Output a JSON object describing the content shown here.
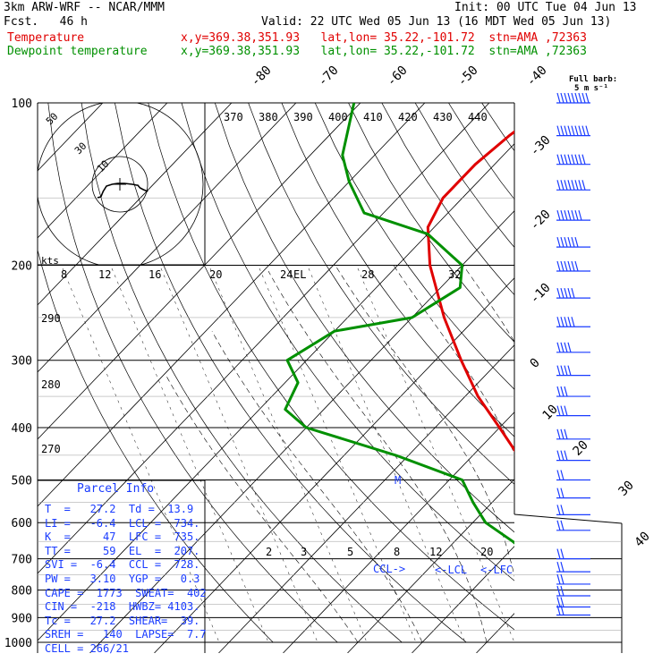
{
  "header": {
    "model": "3km ARW-WRF -- NCAR/MMM",
    "init": "Init: 00 UTC Tue 04 Jun 13",
    "fcst": "Fcst.   46 h",
    "valid": "Valid: 22 UTC Wed 05 Jun 13 (16 MDT Wed 05 Jun 13)",
    "temp_label": "Temperature",
    "dew_label": "Dewpoint temperature",
    "temp_info": "x,y=369.38,351.93   lat,lon= 35.22,-101.72  stn=AMA ,72363",
    "dew_info": "x,y=369.38,351.93   lat,lon= 35.22,-101.72  stn=AMA ,72363"
  },
  "barb_legend": {
    "line1": "Full barb:",
    "line2": "5 m s⁻¹"
  },
  "hodograph": {
    "label": "kts",
    "ring_labels": [
      "10",
      "30",
      "50"
    ]
  },
  "mixing_ratio_upper": [
    "8",
    "12",
    "16",
    "20",
    "24",
    "28",
    "32"
  ],
  "mixing_ratio_lower": [
    "2",
    "3",
    "5",
    "8",
    "12",
    "20"
  ],
  "el_label": "EL",
  "markers": {
    "ccl": "CCL->",
    "lcl": "<-LCL",
    "lfc": "<-LFC",
    "m": "M"
  },
  "parcel_info": {
    "title": "Parcel Info",
    "rows": [
      "T  =   27.2  Td =  13.9",
      "LI =   -6.4  LCL =  734.",
      "K  =     47  LFC =  735.",
      "TT =     59  EL  =  207.",
      "SVI =  -6.4  CCL =  728.",
      "PW =   3.10  YGP =   0.3",
      "CAPE =  1773  SWEAT=  402",
      "CIN =  -218  HWBZ= 4103.",
      "Tc =   27.2  SHEAR=  39.",
      "SREH =   140  LAPSE=  7.7",
      "CELL = 266/21"
    ]
  },
  "colors": {
    "temperature": "#e00000",
    "dewpoint": "#009000",
    "barbs": "#1a3cff",
    "info": "#1a3cff"
  },
  "chart_data": {
    "type": "line",
    "title": "",
    "xlabel": "",
    "ylabel": "",
    "pressure_levels": [
      100,
      200,
      300,
      400,
      500,
      600,
      700,
      800,
      900,
      1000
    ],
    "pressure_labels": [
      "100",
      "200",
      "300",
      "400",
      "500",
      "600",
      "700",
      "800",
      "900",
      "1000"
    ],
    "isotherm_labels": [
      "-80",
      "-70",
      "-60",
      "-50",
      "-40",
      "-30",
      "-20",
      "-10",
      "0",
      "10",
      "20",
      "30",
      "40"
    ],
    "theta_labels_top": [
      "370",
      "380",
      "390",
      "400",
      "410",
      "420",
      "430",
      "440"
    ],
    "theta_labels_left": [
      "290",
      "280",
      "270"
    ],
    "ylim": [
      1000,
      100
    ],
    "series": [
      {
        "name": "Temperature",
        "p": [
          895,
          830,
          730,
          700,
          650,
          600,
          550,
          500,
          450,
          400,
          350,
          300,
          250,
          200,
          170,
          150,
          130,
          115,
          100
        ],
        "t": [
          27.2,
          20.0,
          14.5,
          13.5,
          8.0,
          4.0,
          -1.5,
          -7.0,
          -13.0,
          -20.0,
          -28.0,
          -36.0,
          -45.0,
          -55.0,
          -61.0,
          -63.0,
          -63.0,
          -62.0,
          -60.0
        ]
      },
      {
        "name": "Dewpoint temperature",
        "p": [
          895,
          780,
          730,
          720,
          700,
          650,
          600,
          550,
          500,
          450,
          400,
          370,
          330,
          300,
          265,
          250,
          220,
          200,
          175,
          160,
          140,
          125,
          100
        ],
        "t": [
          13.9,
          13.0,
          13.0,
          9.0,
          5.0,
          -1.0,
          -8.0,
          -13.0,
          -18.0,
          -32.0,
          -50.0,
          -56.0,
          -58.0,
          -63.0,
          -60.0,
          -50.0,
          -47.0,
          -50.0,
          -60.0,
          -73.0,
          -80.0,
          -85.0,
          -91.0
        ]
      }
    ],
    "hodograph_kts": [
      [
        0,
        -5
      ],
      [
        3,
        -4
      ],
      [
        5,
        2
      ],
      [
        8,
        8
      ],
      [
        13,
        10
      ],
      [
        18,
        11
      ],
      [
        24,
        11
      ],
      [
        31,
        10
      ],
      [
        35,
        9
      ],
      [
        36,
        9
      ],
      [
        38,
        6
      ],
      [
        41,
        4
      ],
      [
        45,
        2
      ]
    ],
    "wind_barbs": [
      {
        "p": 100,
        "speed": 45,
        "dir": 270
      },
      {
        "p": 115,
        "speed": 45,
        "dir": 270
      },
      {
        "p": 130,
        "speed": 40,
        "dir": 270
      },
      {
        "p": 145,
        "speed": 40,
        "dir": 265
      },
      {
        "p": 165,
        "speed": 35,
        "dir": 265
      },
      {
        "p": 185,
        "speed": 30,
        "dir": 260
      },
      {
        "p": 205,
        "speed": 30,
        "dir": 260
      },
      {
        "p": 230,
        "speed": 25,
        "dir": 265
      },
      {
        "p": 260,
        "speed": 25,
        "dir": 270
      },
      {
        "p": 290,
        "speed": 20,
        "dir": 270
      },
      {
        "p": 320,
        "speed": 20,
        "dir": 275
      },
      {
        "p": 350,
        "speed": 15,
        "dir": 280
      },
      {
        "p": 380,
        "speed": 15,
        "dir": 285
      },
      {
        "p": 420,
        "speed": 15,
        "dir": 290
      },
      {
        "p": 460,
        "speed": 15,
        "dir": 295
      },
      {
        "p": 500,
        "speed": 10,
        "dir": 300
      },
      {
        "p": 540,
        "speed": 10,
        "dir": 305
      },
      {
        "p": 580,
        "speed": 10,
        "dir": 310
      },
      {
        "p": 620,
        "speed": 10,
        "dir": 300
      },
      {
        "p": 700,
        "speed": 10,
        "dir": 270
      },
      {
        "p": 740,
        "speed": 10,
        "dir": 230
      },
      {
        "p": 780,
        "speed": 10,
        "dir": 200
      },
      {
        "p": 820,
        "speed": 10,
        "dir": 190
      },
      {
        "p": 860,
        "speed": 10,
        "dir": 180
      },
      {
        "p": 890,
        "speed": 10,
        "dir": 180
      }
    ]
  }
}
